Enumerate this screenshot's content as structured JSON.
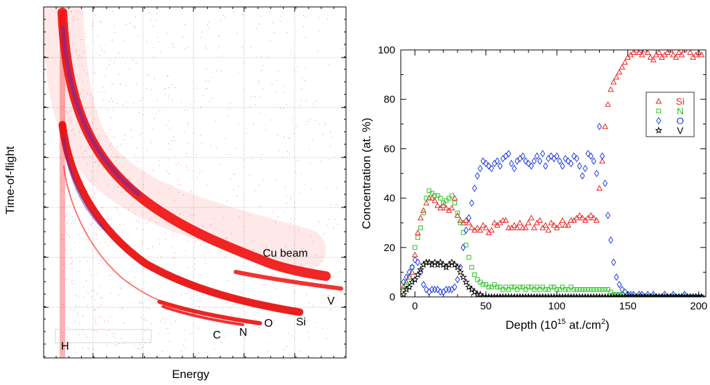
{
  "chart_data": [
    {
      "type": "heatmap",
      "xlabel": "Energy",
      "ylabel": "Time-of-flight",
      "grid": true,
      "color": "#ff0000",
      "annotations": [
        "H",
        "C",
        "N",
        "O",
        "Si",
        "V",
        "Cu beam"
      ]
    },
    {
      "type": "scatter",
      "xlabel": "Depth (10",
      "xlabel_sup": "15",
      "xlabel_mid": " at./cm",
      "xlabel_sup2": "2",
      "xlabel_end": ")",
      "ylabel": "Concentration (at. %)",
      "xlim": [
        -10,
        205
      ],
      "ylim": [
        0,
        100
      ],
      "xticks": [
        "0",
        "50",
        "100",
        "150",
        "200"
      ],
      "yticks": [
        "0",
        "20",
        "40",
        "60",
        "80",
        "100"
      ],
      "legend_position": "top-right",
      "series": [
        {
          "name": "Si",
          "marker": "triangle",
          "color": "#e8221f",
          "x": [
            -8,
            -6,
            -4,
            -2,
            0,
            2,
            4,
            6,
            8,
            10,
            12,
            14,
            16,
            18,
            20,
            22,
            24,
            26,
            28,
            30,
            32,
            34,
            36,
            38,
            40,
            42,
            44,
            46,
            48,
            50,
            52,
            54,
            56,
            58,
            60,
            62,
            64,
            66,
            68,
            70,
            72,
            74,
            76,
            78,
            80,
            82,
            84,
            86,
            88,
            90,
            92,
            94,
            96,
            98,
            100,
            102,
            104,
            106,
            108,
            110,
            112,
            114,
            116,
            118,
            120,
            122,
            124,
            126,
            128,
            130,
            132,
            134,
            136,
            138,
            140,
            142,
            144,
            146,
            148,
            150,
            152,
            154,
            156,
            158,
            160,
            162,
            164,
            166,
            168,
            170,
            172,
            174,
            176,
            178,
            180,
            182,
            184,
            186,
            188,
            190,
            192,
            194,
            196,
            198,
            200,
            202
          ],
          "y": [
            4,
            6,
            8,
            10,
            17,
            26,
            32,
            35,
            38,
            40,
            40,
            39,
            37,
            36,
            37,
            36,
            35,
            36,
            40,
            33,
            31,
            30,
            31,
            30,
            28,
            27,
            28,
            27,
            29,
            28,
            26,
            27,
            30,
            29,
            30,
            31,
            31,
            28,
            28,
            29,
            28,
            30,
            28,
            28,
            30,
            32,
            28,
            30,
            31,
            28,
            29,
            27,
            30,
            29,
            28,
            29,
            31,
            29,
            29,
            31,
            31,
            32,
            33,
            32,
            31,
            32,
            33,
            32,
            31,
            44,
            55,
            69,
            78,
            84,
            87,
            89,
            91,
            93,
            95,
            97,
            98,
            99,
            100,
            99,
            98,
            100,
            99,
            97,
            96,
            98,
            99,
            97,
            98,
            99,
            100,
            98,
            97,
            99,
            98,
            100,
            101,
            99,
            97,
            98,
            99,
            98
          ]
        },
        {
          "name": "N",
          "marker": "square",
          "color": "#27c51e",
          "x": [
            -8,
            -6,
            -4,
            -2,
            0,
            2,
            4,
            6,
            8,
            10,
            12,
            14,
            16,
            18,
            20,
            22,
            24,
            26,
            28,
            30,
            32,
            34,
            36,
            38,
            40,
            42,
            44,
            46,
            48,
            50,
            52,
            54,
            56,
            58,
            60,
            62,
            64,
            66,
            68,
            70,
            72,
            74,
            76,
            78,
            80,
            82,
            84,
            86,
            88,
            90,
            92,
            94,
            96,
            98,
            100,
            102,
            104,
            106,
            108,
            110,
            112,
            114,
            116,
            118,
            120,
            122,
            124,
            126,
            128,
            130,
            132,
            134,
            136,
            138,
            140,
            142,
            144,
            146,
            148,
            150,
            152,
            154,
            156,
            158,
            160,
            162,
            164,
            166,
            168,
            170,
            172,
            174,
            176,
            178,
            180,
            182,
            184,
            186,
            188,
            190,
            192,
            194,
            196,
            198,
            200,
            202
          ],
          "y": [
            3,
            5,
            8,
            12,
            20,
            24,
            28,
            34,
            40,
            43,
            42,
            41,
            41,
            40,
            38,
            39,
            40,
            41,
            38,
            34,
            30,
            26,
            21,
            16,
            12,
            9,
            7,
            6,
            5,
            5,
            4,
            4,
            5,
            4,
            4,
            3,
            4,
            3,
            4,
            4,
            3,
            4,
            4,
            3,
            4,
            4,
            3,
            4,
            3,
            4,
            3,
            3,
            4,
            4,
            3,
            3,
            4,
            3,
            3,
            4,
            3,
            3,
            3,
            3,
            3,
            3,
            3,
            3,
            3,
            3,
            3,
            3,
            3,
            2,
            1,
            1,
            1,
            1,
            0,
            0,
            0,
            0,
            0,
            0,
            0,
            0,
            0,
            0,
            0,
            0,
            0,
            0,
            0,
            0,
            0,
            0,
            0,
            0,
            0,
            0,
            0,
            0,
            0,
            0,
            0,
            0
          ]
        },
        {
          "name": "O",
          "marker": "diamond",
          "color": "#1f3be8",
          "x": [
            -8,
            -6,
            -4,
            -2,
            0,
            2,
            4,
            6,
            8,
            10,
            12,
            14,
            16,
            18,
            20,
            22,
            24,
            26,
            28,
            30,
            32,
            34,
            36,
            38,
            40,
            42,
            44,
            46,
            48,
            50,
            52,
            54,
            56,
            58,
            60,
            62,
            64,
            66,
            68,
            70,
            72,
            74,
            76,
            78,
            80,
            82,
            84,
            86,
            88,
            90,
            92,
            94,
            96,
            98,
            100,
            102,
            104,
            106,
            108,
            110,
            112,
            114,
            116,
            118,
            120,
            122,
            124,
            126,
            128,
            130,
            132,
            134,
            136,
            138,
            140,
            142,
            144,
            146,
            148,
            150,
            152,
            154,
            156,
            158,
            160,
            162,
            164,
            166,
            168,
            170,
            172,
            174,
            176,
            178,
            180,
            182,
            184,
            186,
            188,
            190,
            192,
            194,
            196,
            198,
            200,
            202
          ],
          "y": [
            6,
            8,
            10,
            12,
            15,
            14,
            10,
            5,
            3,
            2,
            3,
            3,
            3,
            2,
            2,
            3,
            3,
            3,
            4,
            7,
            12,
            20,
            27,
            32,
            38,
            44,
            49,
            52,
            55,
            54,
            53,
            52,
            54,
            55,
            53,
            56,
            57,
            58,
            54,
            52,
            55,
            56,
            57,
            55,
            54,
            53,
            55,
            57,
            55,
            58,
            53,
            56,
            57,
            56,
            57,
            55,
            53,
            56,
            55,
            54,
            57,
            56,
            53,
            49,
            52,
            58,
            57,
            55,
            50,
            69,
            57,
            46,
            33,
            23,
            14,
            8,
            5,
            3,
            2,
            1,
            1,
            1,
            0,
            1,
            1,
            0,
            1,
            0,
            1,
            0,
            0,
            0,
            1,
            0,
            0,
            1,
            0,
            0,
            0,
            1,
            0,
            0,
            0,
            0,
            0,
            0
          ]
        },
        {
          "name": "V",
          "marker": "star",
          "color": "#000000",
          "x": [
            -8,
            -6,
            -4,
            -2,
            0,
            2,
            4,
            6,
            8,
            10,
            12,
            14,
            16,
            18,
            20,
            22,
            24,
            26,
            28,
            30,
            32,
            34,
            36,
            38,
            40,
            42,
            44,
            46,
            48,
            50,
            52,
            54,
            56,
            58,
            60,
            62,
            64,
            66,
            68,
            70,
            72,
            74,
            76,
            78,
            80,
            82,
            84,
            86,
            88,
            90,
            92,
            94,
            96,
            98,
            100,
            102,
            104,
            106,
            108,
            110,
            112,
            114,
            116,
            118,
            120,
            122,
            124,
            126,
            128,
            130,
            132,
            134,
            136,
            138,
            140,
            142,
            144,
            146,
            148,
            150,
            152,
            154,
            156,
            158,
            160,
            162,
            164,
            166,
            168,
            170,
            172,
            174,
            176,
            178,
            180,
            182,
            184,
            186,
            188,
            190,
            192,
            194,
            196,
            198,
            200,
            202
          ],
          "y": [
            1,
            3,
            4,
            6,
            7,
            9,
            11,
            13,
            14,
            14,
            13,
            14,
            13,
            14,
            13,
            12,
            13,
            14,
            13,
            12,
            10,
            8,
            6,
            4,
            3,
            2,
            1,
            1,
            0,
            0,
            0,
            0,
            0,
            0,
            0,
            0,
            0,
            0,
            0,
            0,
            0,
            0,
            0,
            0,
            0,
            0,
            0,
            0,
            0,
            0,
            0,
            0,
            0,
            0,
            0,
            0,
            0,
            0,
            0,
            0,
            0,
            0,
            0,
            0,
            0,
            0,
            0,
            0,
            0,
            0,
            0,
            0,
            0,
            0,
            0,
            0,
            0,
            0,
            0,
            0,
            0,
            0,
            0,
            0,
            0,
            0,
            0,
            0,
            0,
            0,
            0,
            0,
            0,
            0,
            0,
            0,
            0,
            0,
            0,
            0,
            0,
            0,
            0,
            0,
            0,
            0
          ]
        }
      ]
    }
  ]
}
